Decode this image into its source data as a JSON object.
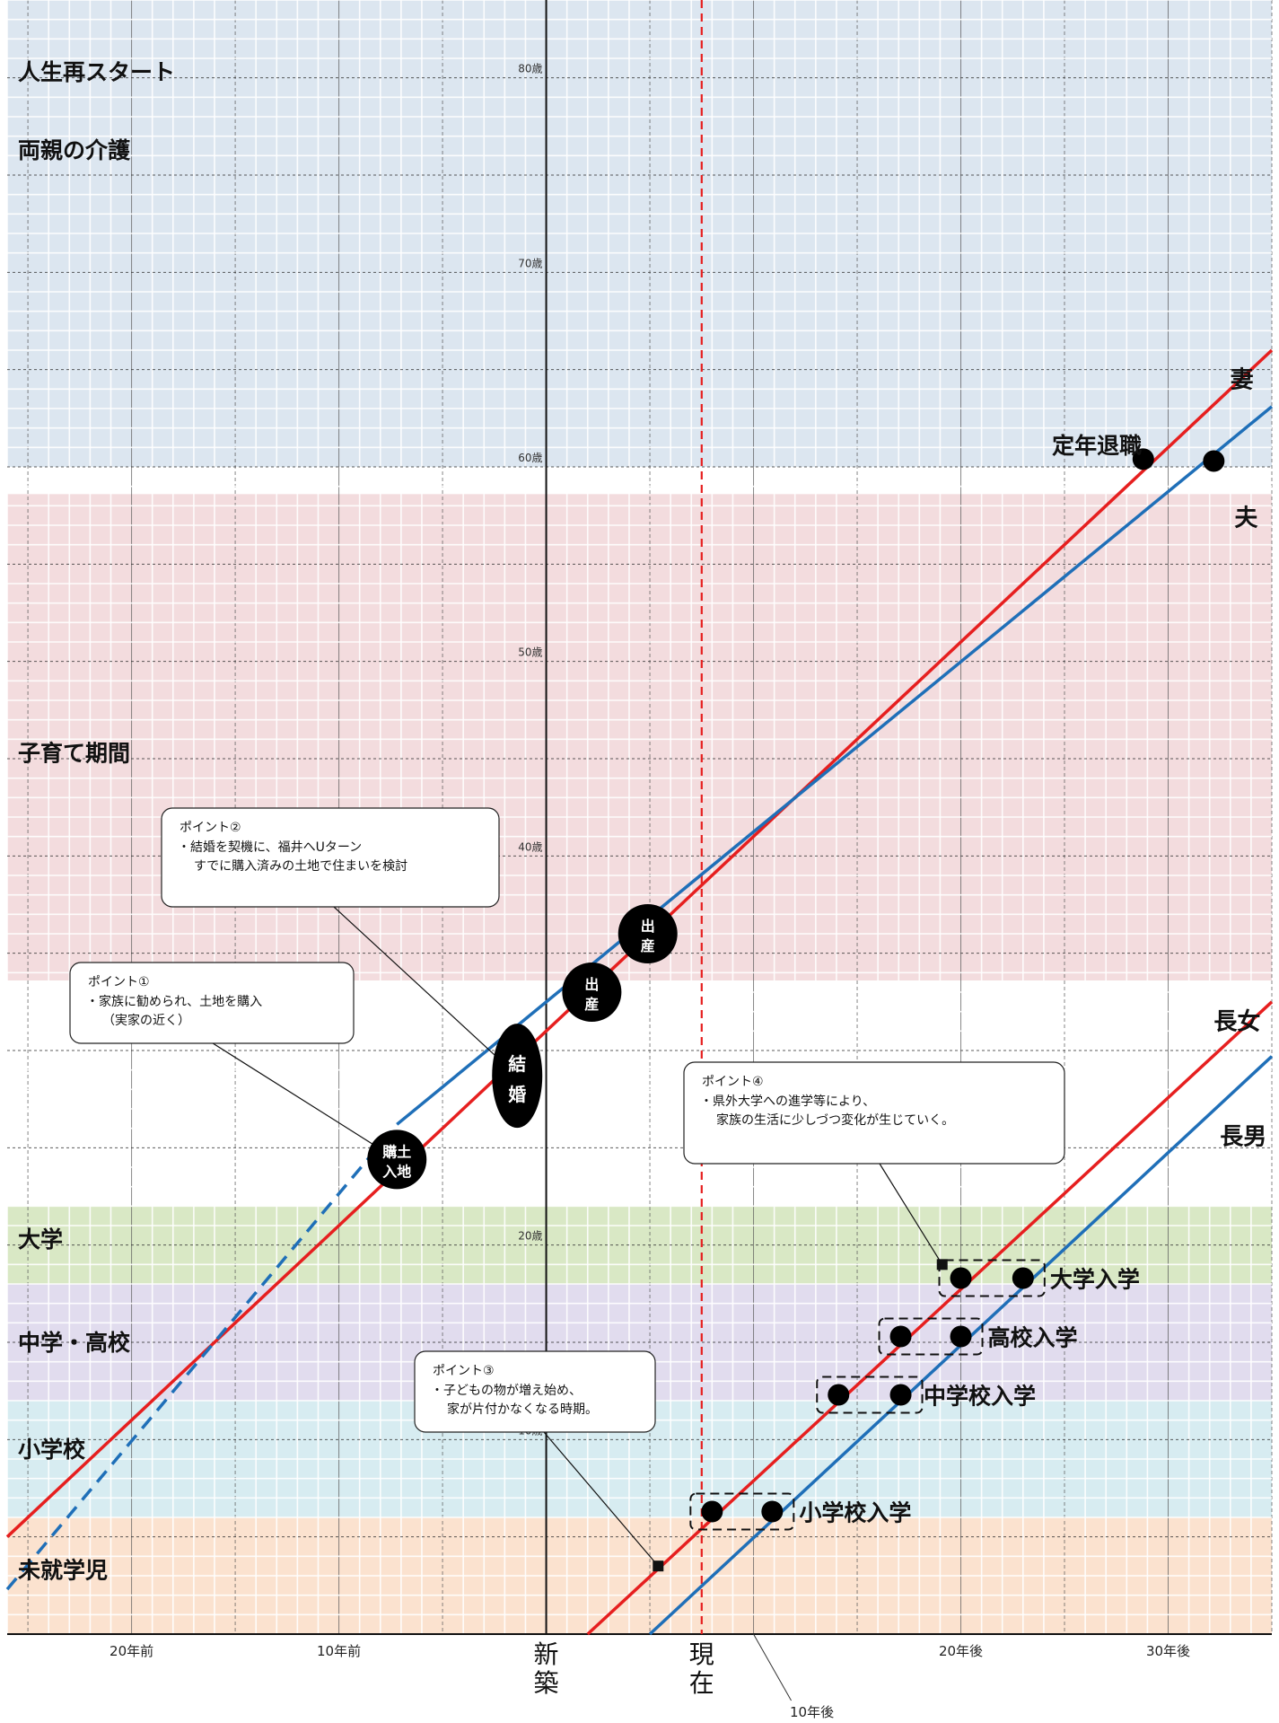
{
  "chart_data": {
    "type": "line",
    "x_axis": {
      "unit": "years relative to new construction",
      "range": [
        -26,
        35
      ],
      "ticks": [
        {
          "x": -20,
          "label": "20年前"
        },
        {
          "x": -10,
          "label": "10年前"
        },
        {
          "x": 0,
          "label": "新築"
        },
        {
          "x": 7.5,
          "label": "現在"
        },
        {
          "x": 10,
          "label": "10年後"
        },
        {
          "x": 20,
          "label": "20年後"
        },
        {
          "x": 30,
          "label": "30年後"
        }
      ]
    },
    "y_axis": {
      "unit": "age",
      "range": [
        0,
        84
      ],
      "ticks": [
        {
          "y": 10,
          "label": "10歳"
        },
        {
          "y": 20,
          "label": "20歳"
        },
        {
          "y": 40,
          "label": "40歳"
        },
        {
          "y": 50,
          "label": "50歳"
        },
        {
          "y": 60,
          "label": "60歳"
        },
        {
          "y": 70,
          "label": "70歳"
        },
        {
          "y": 80,
          "label": "80歳"
        }
      ]
    },
    "grid": true,
    "current_marker": {
      "x": 7.5
    },
    "bands": [
      {
        "label": "未就学児",
        "from": 0,
        "to": 6,
        "color": "#fbe2cf",
        "label_y": 3.3
      },
      {
        "label": "小学校",
        "from": 6,
        "to": 12,
        "color": "#d7ecf1",
        "label_y": 9.5
      },
      {
        "label": "中学・高校",
        "from": 12,
        "to": 18,
        "color": "#e1dcee",
        "label_y": 15.0
      },
      {
        "label": "大学",
        "from": 18,
        "to": 22,
        "color": "#d9e8c5",
        "label_y": 20.3
      },
      {
        "label": "子育て期間",
        "from": 33.6,
        "to": 58.6,
        "color": "#f3dcde",
        "label_y": 45.3
      },
      {
        "label": "両親の介護",
        "from": 60,
        "to": 84,
        "color": "#dce6f0",
        "label_y": 76.3
      },
      {
        "label": "人生再スタート",
        "from": 60,
        "to": 84,
        "color": "#dce6f0",
        "label_y": 80.3
      }
    ],
    "series": [
      {
        "name": "妻",
        "color": "#e61f1f",
        "points": [
          [
            -26,
            5
          ],
          [
            35,
            66
          ]
        ],
        "label": {
          "x": 33,
          "y": 64.5
        }
      },
      {
        "name": "夫",
        "color": "#1f6fb8",
        "points": [
          [
            -7.2,
            26.2
          ],
          [
            35,
            63.1
          ]
        ],
        "dashed_part": [
          [
            -26,
            2.3
          ],
          [
            -7.2,
            26.2
          ]
        ],
        "label": {
          "x": 33.2,
          "y": 57.4
        }
      },
      {
        "name": "長女",
        "color": "#e61f1f",
        "points": [
          [
            2,
            0
          ],
          [
            35,
            32.5
          ]
        ],
        "label": {
          "x": 32.2,
          "y": 31.5
        }
      },
      {
        "name": "長男",
        "color": "#1f6fb8",
        "points": [
          [
            5,
            0
          ],
          [
            35,
            29.7
          ]
        ],
        "label": {
          "x": 32.5,
          "y": 25.6
        }
      }
    ],
    "events": [
      {
        "label": "購土\n入地",
        "x": -7.2,
        "y": 24.4,
        "kind": "badge"
      },
      {
        "label": "結\n婚",
        "x": -1.4,
        "y": 28.7,
        "kind": "oval"
      },
      {
        "label": "出\n産",
        "x": 2.2,
        "y": 33.0,
        "kind": "badge"
      },
      {
        "label": "出\n産",
        "x": 4.9,
        "y": 36.0,
        "kind": "badge"
      },
      {
        "label": "定年退職",
        "x": 28.8,
        "y": 60.4,
        "kind": "dot",
        "text_x": 24.4,
        "text_y": 61.1
      },
      {
        "label": "",
        "x": 32.2,
        "y": 60.3,
        "kind": "dot"
      }
    ],
    "milestones": [
      {
        "label": "小学校入学",
        "dots": [
          [
            8.0,
            6.3
          ],
          [
            10.9,
            6.3
          ]
        ],
        "text_x": 12.2
      },
      {
        "label": "中学校入学",
        "dots": [
          [
            14.1,
            12.3
          ],
          [
            17.1,
            12.3
          ]
        ],
        "text_x": 18.2
      },
      {
        "label": "高校入学",
        "dots": [
          [
            17.1,
            15.3
          ],
          [
            20.0,
            15.3
          ]
        ],
        "text_x": 21.3
      },
      {
        "label": "大学入学",
        "dots": [
          [
            20.0,
            18.3
          ],
          [
            23.0,
            18.3
          ]
        ],
        "text_x": 24.3
      }
    ],
    "notes": [
      {
        "title": "ポイント①",
        "lines": [
          "・家族に勧められ、土地を購入",
          "（実家の近く）"
        ],
        "anchor": [
          -7.2,
          24.4
        ],
        "box_pos": "left-mid"
      },
      {
        "title": "ポイント②",
        "lines": [
          "・結婚を契機に、福井へUターン",
          "すでに購入済みの土地で住まいを検討"
        ],
        "anchor": [
          -1.4,
          28.7
        ],
        "box_pos": "left-upper"
      },
      {
        "title": "ポイント③",
        "lines": [
          "・子どもの物が増え始め、",
          "家が片付かなくなる時期。"
        ],
        "anchor": [
          5.4,
          3.5
        ],
        "box_pos": "center-lower"
      },
      {
        "title": "ポイント④",
        "lines": [
          "・県外大学への進学等により、",
          "家族の生活に少しづつ変化が生じていく。"
        ],
        "anchor": [
          19.1,
          19.0
        ],
        "box_pos": "right-mid"
      }
    ]
  }
}
